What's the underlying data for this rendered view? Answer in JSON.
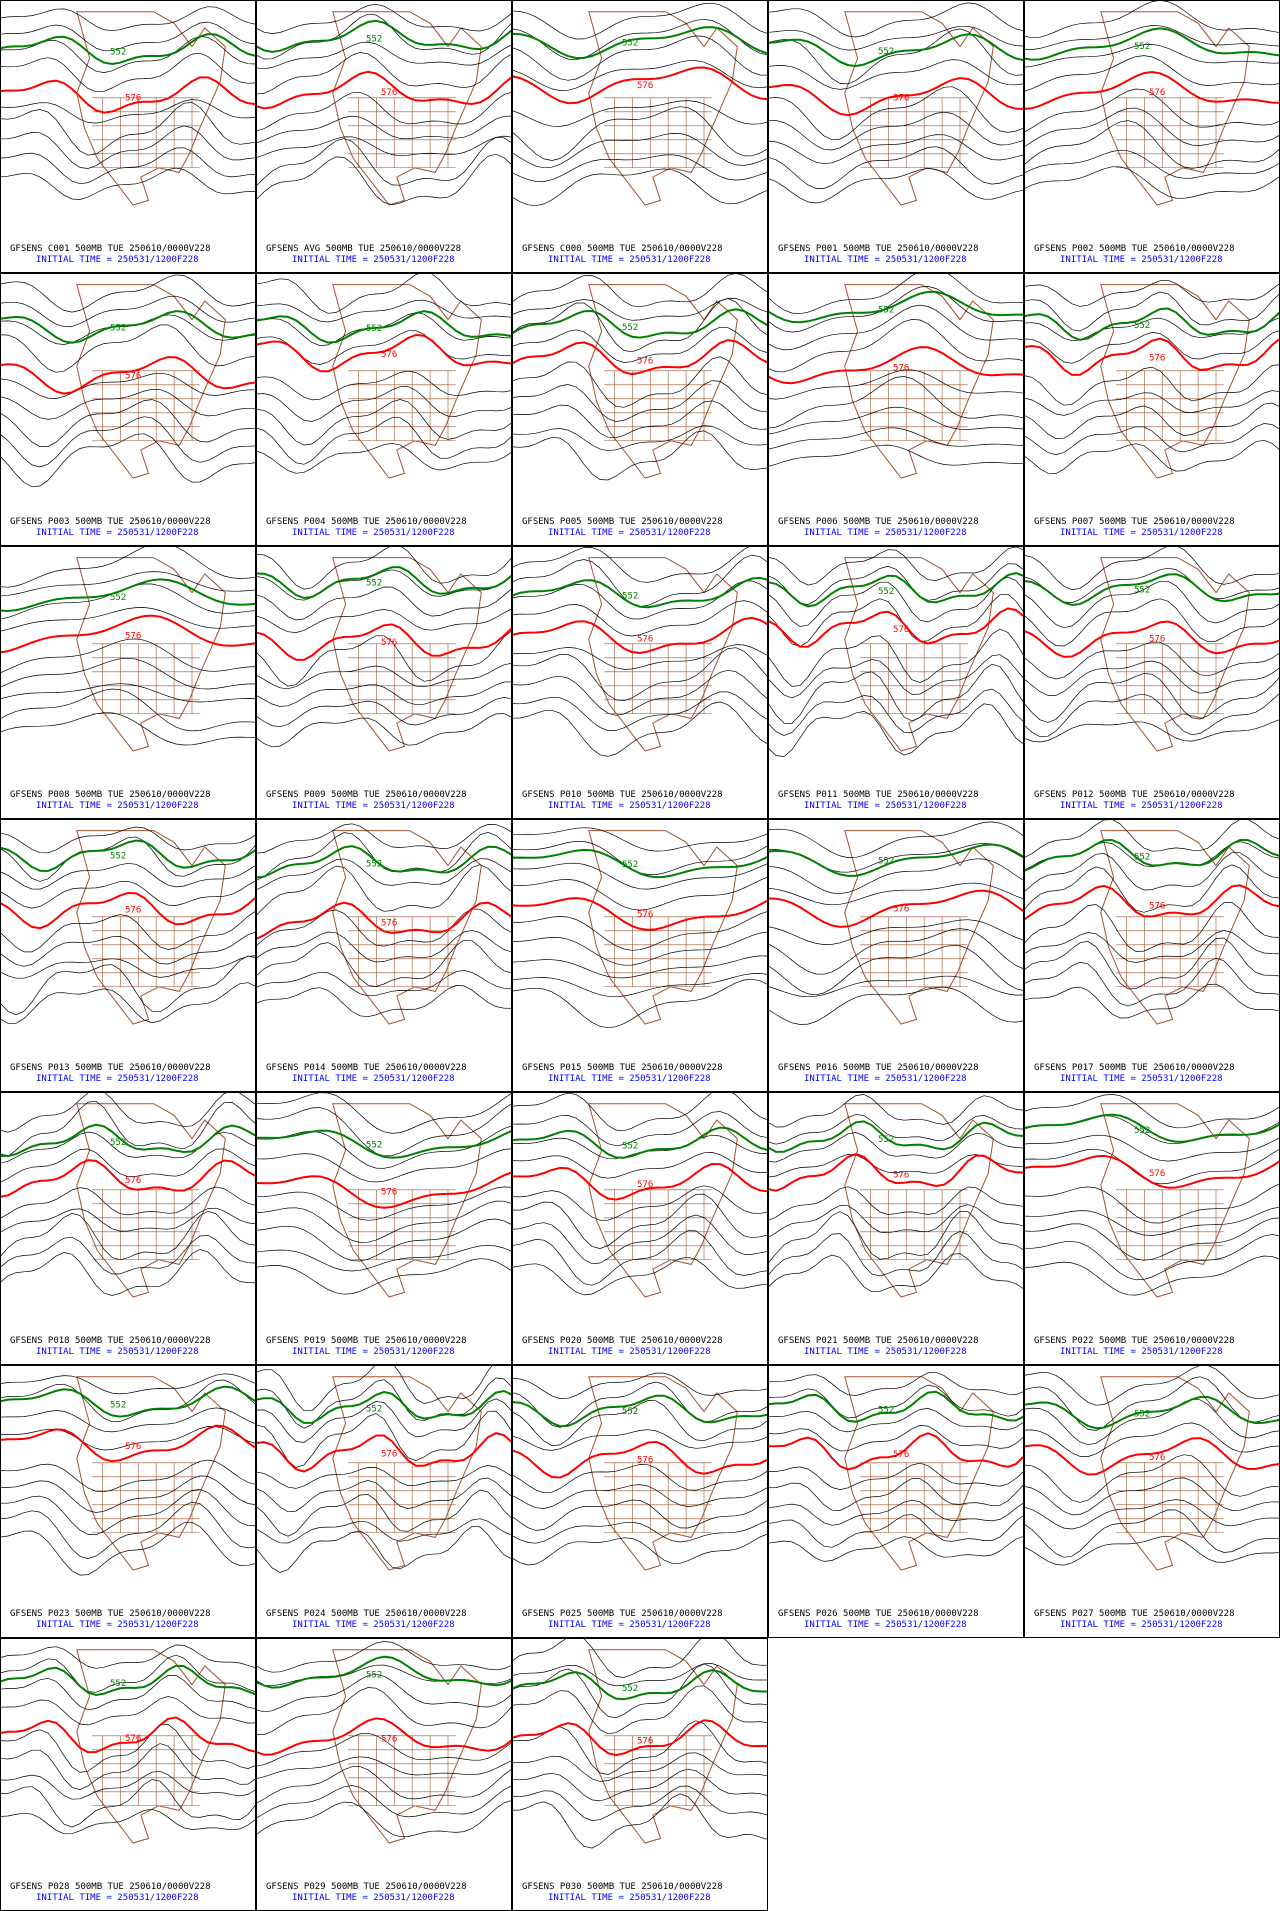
{
  "panels": [
    {
      "title": "GFSENS C001 500MB TUE 250610/0000V228",
      "initial_time": "INITIAL TIME = 250531/1200F228",
      "contour_labels": [
        "552",
        "576"
      ]
    },
    {
      "title": "GFSENS AVG 500MB TUE 250610/0000V228",
      "initial_time": "INITIAL TIME = 250531/1200F228",
      "contour_labels": [
        "552",
        "576"
      ]
    },
    {
      "title": "GFSENS C000 500MB TUE 250610/0000V228",
      "initial_time": "INITIAL TIME = 250531/1200F228",
      "contour_labels": [
        "552",
        "576"
      ]
    },
    {
      "title": "GFSENS P001 500MB TUE 250610/0000V228",
      "initial_time": "INITIAL TIME = 250531/1200F228",
      "contour_labels": [
        "552",
        "576"
      ]
    },
    {
      "title": "GFSENS P002 500MB TUE 250610/0000V228",
      "initial_time": "INITIAL TIME = 250531/1200F228",
      "contour_labels": [
        "552",
        "576"
      ]
    },
    {
      "title": "GFSENS P003 500MB TUE 250610/0000V228",
      "initial_time": "INITIAL TIME = 250531/1200F228",
      "contour_labels": [
        "552",
        "576"
      ]
    },
    {
      "title": "GFSENS P004 500MB TUE 250610/0000V228",
      "initial_time": "INITIAL TIME = 250531/1200F228",
      "contour_labels": [
        "552",
        "576"
      ]
    },
    {
      "title": "GFSENS P005 500MB TUE 250610/0000V228",
      "initial_time": "INITIAL TIME = 250531/1200F228",
      "contour_labels": [
        "552",
        "576"
      ]
    },
    {
      "title": "GFSENS P006 500MB TUE 250610/0000V228",
      "initial_time": "INITIAL TIME = 250531/1200F228",
      "contour_labels": [
        "552",
        "576"
      ]
    },
    {
      "title": "GFSENS P007 500MB TUE 250610/0000V228",
      "initial_time": "INITIAL TIME = 250531/1200F228",
      "contour_labels": [
        "552",
        "576"
      ]
    },
    {
      "title": "GFSENS P008 500MB TUE 250610/0000V228",
      "initial_time": "INITIAL TIME = 250531/1200F228",
      "contour_labels": [
        "552",
        "576"
      ]
    },
    {
      "title": "GFSENS P009 500MB TUE 250610/0000V228",
      "initial_time": "INITIAL TIME = 250531/1200F228",
      "contour_labels": [
        "552",
        "576"
      ]
    },
    {
      "title": "GFSENS P010 500MB TUE 250610/0000V228",
      "initial_time": "INITIAL TIME = 250531/1200F228",
      "contour_labels": [
        "552",
        "576"
      ]
    },
    {
      "title": "GFSENS P011 500MB TUE 250610/0000V228",
      "initial_time": "INITIAL TIME = 250531/1200F228",
      "contour_labels": [
        "552",
        "576"
      ]
    },
    {
      "title": "GFSENS P012 500MB TUE 250610/0000V228",
      "initial_time": "INITIAL TIME = 250531/1200F228",
      "contour_labels": [
        "552",
        "576"
      ]
    },
    {
      "title": "GFSENS P013 500MB TUE 250610/0000V228",
      "initial_time": "INITIAL TIME = 250531/1200F228",
      "contour_labels": [
        "552",
        "576"
      ]
    },
    {
      "title": "GFSENS P014 500MB TUE 250610/0000V228",
      "initial_time": "INITIAL TIME = 250531/1200F228",
      "contour_labels": [
        "552",
        "576"
      ]
    },
    {
      "title": "GFSENS P015 500MB TUE 250610/0000V228",
      "initial_time": "INITIAL TIME = 250531/1200F228",
      "contour_labels": [
        "552",
        "576"
      ]
    },
    {
      "title": "GFSENS P016 500MB TUE 250610/0000V228",
      "initial_time": "INITIAL TIME = 250531/1200F228",
      "contour_labels": [
        "552",
        "576"
      ]
    },
    {
      "title": "GFSENS P017 500MB TUE 250610/0000V228",
      "initial_time": "INITIAL TIME = 250531/1200F228",
      "contour_labels": [
        "552",
        "576"
      ]
    },
    {
      "title": "GFSENS P018 500MB TUE 250610/0000V228",
      "initial_time": "INITIAL TIME = 250531/1200F228",
      "contour_labels": [
        "552",
        "576"
      ]
    },
    {
      "title": "GFSENS P019 500MB TUE 250610/0000V228",
      "initial_time": "INITIAL TIME = 250531/1200F228",
      "contour_labels": [
        "552",
        "576"
      ]
    },
    {
      "title": "GFSENS P020 500MB TUE 250610/0000V228",
      "initial_time": "INITIAL TIME = 250531/1200F228",
      "contour_labels": [
        "552",
        "576"
      ]
    },
    {
      "title": "GFSENS P021 500MB TUE 250610/0000V228",
      "initial_time": "INITIAL TIME = 250531/1200F228",
      "contour_labels": [
        "552",
        "576"
      ]
    },
    {
      "title": "GFSENS P022 500MB TUE 250610/0000V228",
      "initial_time": "INITIAL TIME = 250531/1200F228",
      "contour_labels": [
        "552",
        "576"
      ]
    },
    {
      "title": "GFSENS P023 500MB TUE 250610/0000V228",
      "initial_time": "INITIAL TIME = 250531/1200F228",
      "contour_labels": [
        "552",
        "576"
      ]
    },
    {
      "title": "GFSENS P024 500MB TUE 250610/0000V228",
      "initial_time": "INITIAL TIME = 250531/1200F228",
      "contour_labels": [
        "552",
        "576"
      ]
    },
    {
      "title": "GFSENS P025 500MB TUE 250610/0000V228",
      "initial_time": "INITIAL TIME = 250531/1200F228",
      "contour_labels": [
        "552",
        "576"
      ]
    },
    {
      "title": "GFSENS P026 500MB TUE 250610/0000V228",
      "initial_time": "INITIAL TIME = 250531/1200F228",
      "contour_labels": [
        "552",
        "576"
      ]
    },
    {
      "title": "GFSENS P027 500MB TUE 250610/0000V228",
      "initial_time": "INITIAL TIME = 250531/1200F228",
      "contour_labels": [
        "552",
        "576"
      ]
    },
    {
      "title": "GFSENS P028 500MB TUE 250610/0000V228",
      "initial_time": "INITIAL TIME = 250531/1200F228",
      "contour_labels": [
        "552",
        "576"
      ]
    },
    {
      "title": "GFSENS P029 500MB TUE 250610/0000V228",
      "initial_time": "INITIAL TIME = 250531/1200F228",
      "contour_labels": [
        "552",
        "576"
      ]
    },
    {
      "title": "GFSENS P030 500MB TUE 250610/0000V228",
      "initial_time": "INITIAL TIME = 250531/1200F228",
      "contour_labels": [
        "552",
        "576"
      ]
    }
  ]
}
